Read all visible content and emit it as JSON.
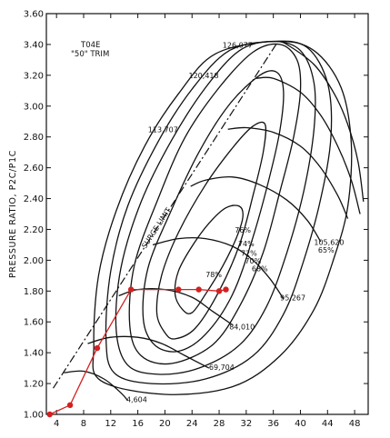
{
  "chart_data": {
    "type": "line",
    "title": "T04E",
    "subtitle": "\"50\" TRIM",
    "xlabel": "",
    "ylabel": "PRESSURE RATIO, P2C/P1C",
    "xlim": [
      2.5,
      50
    ],
    "ylim": [
      1.0,
      3.6
    ],
    "xticks": [
      4,
      8,
      12,
      16,
      20,
      24,
      28,
      32,
      36,
      40,
      44,
      48
    ],
    "yticks": [
      1.0,
      1.2,
      1.4,
      1.6,
      1.8,
      2.0,
      2.2,
      2.4,
      2.6,
      2.8,
      3.0,
      3.2,
      3.4,
      3.6
    ],
    "ytick_labels": [
      "1.00",
      "1.20",
      "1.40",
      "1.60",
      "1.80",
      "2.00",
      "2.20",
      "2.40",
      "2.60",
      "2.80",
      "3.00",
      "3.20",
      "3.40",
      "3.60"
    ],
    "surge_limit": {
      "label": "SURGE LIMIT",
      "points": [
        [
          3.5,
          1.17
        ],
        [
          36.7,
          3.42
        ]
      ]
    },
    "speed_lines": [
      {
        "label": "126,077",
        "points": [
          [
            36.7,
            3.42
          ],
          [
            38,
            3.4
          ],
          [
            42,
            3.27
          ],
          [
            45,
            3.08
          ],
          [
            47,
            2.88
          ],
          [
            48.5,
            2.64
          ],
          [
            49.3,
            2.38
          ]
        ],
        "label_at": [
          28.5,
          3.38
        ]
      },
      {
        "label": "120,418",
        "points": [
          [
            33.5,
            3.18
          ],
          [
            36,
            3.18
          ],
          [
            40,
            3.09
          ],
          [
            43,
            2.94
          ],
          [
            45.5,
            2.74
          ],
          [
            47.5,
            2.52
          ],
          [
            48.8,
            2.3
          ]
        ],
        "label_at": [
          23.5,
          3.18
        ]
      },
      {
        "label": "113,707",
        "points": [
          [
            29.3,
            2.85
          ],
          [
            32,
            2.86
          ],
          [
            36,
            2.83
          ],
          [
            40,
            2.74
          ],
          [
            43,
            2.6
          ],
          [
            45.5,
            2.42
          ],
          [
            47,
            2.27
          ]
        ],
        "label_at": [
          17.5,
          2.83
        ]
      },
      {
        "label": "105,620",
        "points": [
          [
            23.8,
            2.48
          ],
          [
            26,
            2.52
          ],
          [
            30,
            2.54
          ],
          [
            34,
            2.49
          ],
          [
            38,
            2.39
          ],
          [
            41,
            2.26
          ],
          [
            43,
            2.12
          ]
        ],
        "label_at": [
          42,
          2.1
        ]
      },
      {
        "label": "95,267",
        "points": [
          [
            18.2,
            2.1
          ],
          [
            22,
            2.14
          ],
          [
            26,
            2.14
          ],
          [
            30,
            2.09
          ],
          [
            33,
            2.0
          ],
          [
            35.5,
            1.88
          ],
          [
            37.5,
            1.75
          ]
        ],
        "label_at": [
          37,
          1.74
        ]
      },
      {
        "label": "84,010",
        "points": [
          [
            13.2,
            1.77
          ],
          [
            16,
            1.81
          ],
          [
            20,
            1.81
          ],
          [
            24,
            1.76
          ],
          [
            27,
            1.67
          ],
          [
            30,
            1.58
          ]
        ],
        "label_at": [
          29.5,
          1.55
        ]
      },
      {
        "label": "69,704",
        "points": [
          [
            8.6,
            1.46
          ],
          [
            12,
            1.5
          ],
          [
            16,
            1.5
          ],
          [
            19.5,
            1.46
          ],
          [
            23,
            1.38
          ],
          [
            26.5,
            1.3
          ]
        ],
        "label_at": [
          26.5,
          1.29
        ]
      },
      {
        "label": "4,604",
        "points": [
          [
            5.1,
            1.27
          ],
          [
            8,
            1.28
          ],
          [
            11,
            1.23
          ],
          [
            13.5,
            1.14
          ],
          [
            14.5,
            1.09
          ]
        ],
        "label_at": [
          14.3,
          1.08
        ]
      }
    ],
    "efficiency_islands": [
      {
        "label": "78%",
        "points": [
          [
            22.6,
            1.68
          ],
          [
            21.5,
            1.78
          ],
          [
            22,
            1.93
          ],
          [
            24,
            2.09
          ],
          [
            26.5,
            2.24
          ],
          [
            29,
            2.34
          ],
          [
            31,
            2.35
          ],
          [
            31.5,
            2.28
          ],
          [
            30.5,
            2.14
          ],
          [
            28.5,
            1.96
          ],
          [
            26,
            1.78
          ],
          [
            24,
            1.66
          ],
          [
            22.6,
            1.68
          ]
        ],
        "label_at": [
          27.2,
          1.89
        ]
      },
      {
        "label": "76%",
        "points": [
          [
            20,
            1.53
          ],
          [
            18.8,
            1.66
          ],
          [
            19.5,
            1.9
          ],
          [
            22,
            2.18
          ],
          [
            26,
            2.49
          ],
          [
            30,
            2.73
          ],
          [
            33,
            2.87
          ],
          [
            34.8,
            2.88
          ],
          [
            34.5,
            2.7
          ],
          [
            33,
            2.42
          ],
          [
            31,
            2.1
          ],
          [
            28,
            1.8
          ],
          [
            24.5,
            1.56
          ],
          [
            21.5,
            1.49
          ],
          [
            20,
            1.53
          ]
        ],
        "label_at": [
          31.5,
          2.18
        ]
      },
      {
        "label": "74%",
        "points": [
          [
            18.5,
            1.45
          ],
          [
            16.8,
            1.62
          ],
          [
            17.5,
            1.95
          ],
          [
            21,
            2.33
          ],
          [
            25,
            2.7
          ],
          [
            29.5,
            3.01
          ],
          [
            34,
            3.2
          ],
          [
            36.5,
            3.22
          ],
          [
            37.5,
            3.1
          ],
          [
            37,
            2.85
          ],
          [
            35.5,
            2.55
          ],
          [
            33,
            2.15
          ],
          [
            30,
            1.78
          ],
          [
            26,
            1.52
          ],
          [
            22,
            1.41
          ],
          [
            18.5,
            1.45
          ]
        ],
        "label_at": [
          32,
          2.09
        ]
      },
      {
        "label": "72%",
        "points": [
          [
            16.5,
            1.38
          ],
          [
            14.8,
            1.58
          ],
          [
            15.5,
            1.97
          ],
          [
            19,
            2.4
          ],
          [
            23,
            2.8
          ],
          [
            28,
            3.12
          ],
          [
            33,
            3.35
          ],
          [
            37,
            3.4
          ],
          [
            39.5,
            3.3
          ],
          [
            40,
            3.1
          ],
          [
            39,
            2.8
          ],
          [
            37,
            2.45
          ],
          [
            34.5,
            2.05
          ],
          [
            31,
            1.7
          ],
          [
            27,
            1.45
          ],
          [
            21,
            1.33
          ],
          [
            16.5,
            1.38
          ]
        ],
        "label_at": [
          32.4,
          2.03
        ]
      },
      {
        "label": "70%",
        "points": [
          [
            14.5,
            1.32
          ],
          [
            12.8,
            1.55
          ],
          [
            13.5,
            1.95
          ],
          [
            16.5,
            2.38
          ],
          [
            21,
            2.78
          ],
          [
            26,
            3.12
          ],
          [
            31,
            3.36
          ],
          [
            36,
            3.42
          ],
          [
            40,
            3.36
          ],
          [
            42,
            3.15
          ],
          [
            42,
            2.85
          ],
          [
            40.5,
            2.45
          ],
          [
            38,
            2.05
          ],
          [
            35,
            1.7
          ],
          [
            31,
            1.45
          ],
          [
            25,
            1.3
          ],
          [
            19,
            1.26
          ],
          [
            14.5,
            1.32
          ]
        ],
        "label_at": [
          33,
          1.98
        ]
      },
      {
        "label": "68%",
        "points": [
          [
            12.5,
            1.27
          ],
          [
            11.3,
            1.5
          ],
          [
            12,
            1.93
          ],
          [
            14.5,
            2.35
          ],
          [
            19,
            2.77
          ],
          [
            24,
            3.11
          ],
          [
            29.5,
            3.36
          ],
          [
            36.2,
            3.42
          ],
          [
            41,
            3.38
          ],
          [
            44,
            3.15
          ],
          [
            44.5,
            2.8
          ],
          [
            43,
            2.4
          ],
          [
            40.5,
            2.0
          ],
          [
            37.5,
            1.65
          ],
          [
            33,
            1.38
          ],
          [
            26,
            1.23
          ],
          [
            18,
            1.2
          ],
          [
            12.5,
            1.27
          ]
        ],
        "label_at": [
          34,
          1.93
        ]
      },
      {
        "label": "65%",
        "points": [
          [
            10.5,
            1.22
          ],
          [
            9.5,
            1.45
          ],
          [
            10.2,
            1.9
          ],
          [
            12.8,
            2.32
          ],
          [
            17,
            2.74
          ],
          [
            22,
            3.08
          ],
          [
            27.5,
            3.34
          ],
          [
            36.5,
            3.42
          ],
          [
            42,
            3.36
          ],
          [
            46,
            3.12
          ],
          [
            47.5,
            2.76
          ],
          [
            47,
            2.35
          ],
          [
            45,
            2.02
          ],
          [
            42,
            1.68
          ],
          [
            37,
            1.38
          ],
          [
            30,
            1.18
          ],
          [
            20,
            1.13
          ],
          [
            10.5,
            1.22
          ]
        ],
        "label_at": [
          43.8,
          2.05
        ]
      }
    ],
    "operating_line": {
      "color": "#d42020",
      "points": [
        [
          3,
          1.0
        ],
        [
          6,
          1.06
        ],
        [
          10,
          1.43
        ],
        [
          15,
          1.81
        ],
        [
          22,
          1.81
        ],
        [
          25,
          1.81
        ],
        [
          28,
          1.8
        ],
        [
          29,
          1.81
        ]
      ]
    },
    "grid": false
  }
}
